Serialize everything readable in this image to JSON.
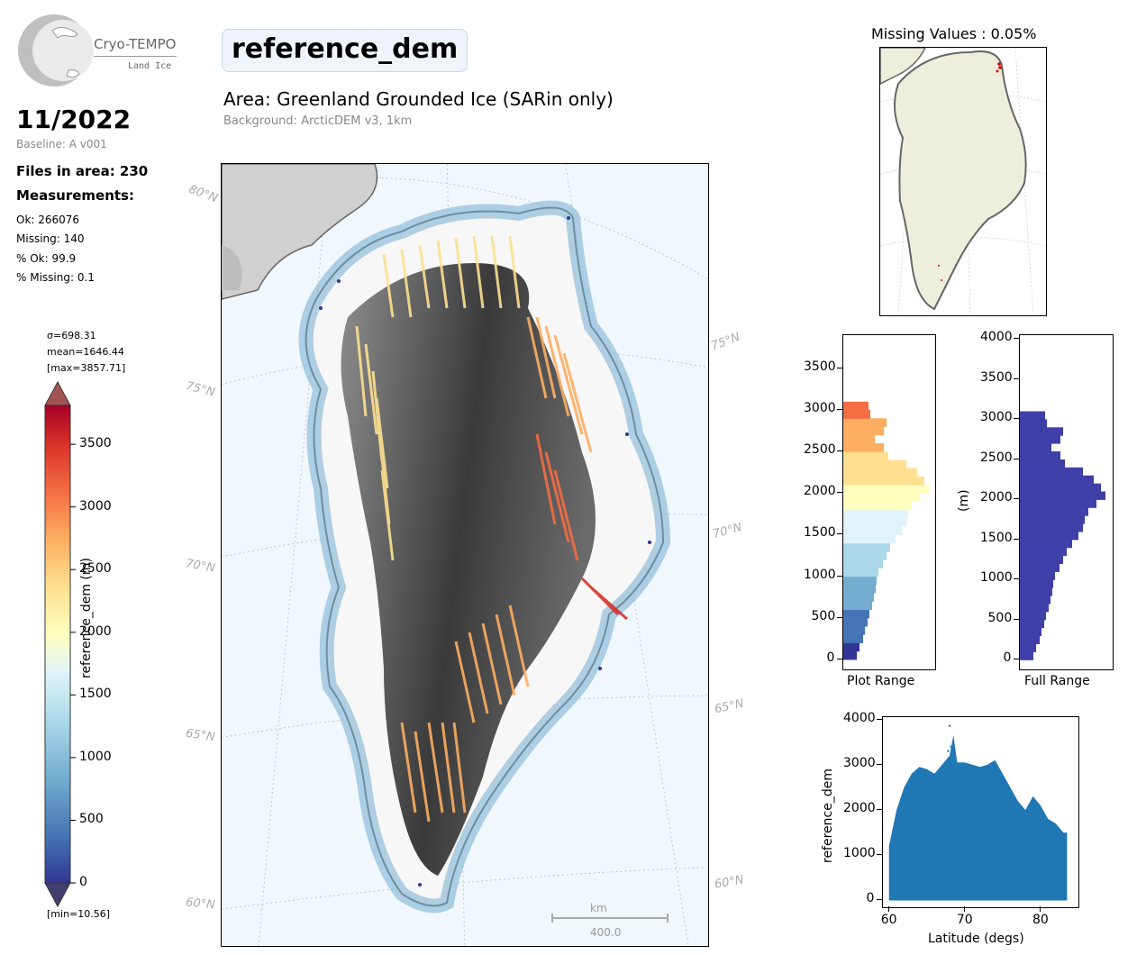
{
  "header": {
    "logo_title": "Cryo-TEMPO",
    "logo_subtitle": "Land Ice",
    "date": "11/2022",
    "baseline": "Baseline: A v001",
    "files_in_area": "Files in area: 230",
    "measurements_heading": "Measurements:",
    "stats": [
      "Ok: 266076",
      "Missing: 140",
      "% Ok: 99.9",
      "% Missing: 0.1"
    ],
    "parameter": "reference_dem",
    "area": "Area: Greenland Grounded Ice (SARin only)",
    "background": "Background: ArcticDEM v3, 1km"
  },
  "colorbar": {
    "sigma": "σ=698.31",
    "mean": "mean=1646.44",
    "max": "[max=3857.71]",
    "min": "[min=10.56]",
    "label": "reference_dem (m)",
    "ticks": [
      "0",
      "500",
      "1000",
      "1500",
      "2000",
      "2500",
      "3000",
      "3500"
    ],
    "colors": [
      "#313695",
      "#4575b4",
      "#74add1",
      "#abd9e9",
      "#e0f3f8",
      "#ffffbf",
      "#fee090",
      "#fdae61",
      "#f46d43",
      "#d73027",
      "#a50026"
    ]
  },
  "map": {
    "lat_labels": [
      "80°N",
      "75°N",
      "70°N",
      "65°N",
      "60°N",
      "75°N",
      "70°N",
      "65°N",
      "60°N"
    ],
    "scale_unit": "km",
    "scale_value": "400.0"
  },
  "inset": {
    "title": "Missing Values : 0.05%"
  },
  "histograms": {
    "left_label": "Plot Range",
    "right_label": "Full Range",
    "right_ylabel": "(m)",
    "left_ticks": [
      "0",
      "500",
      "1000",
      "1500",
      "2000",
      "2500",
      "3000",
      "3500"
    ],
    "right_ticks": [
      "0",
      "500",
      "1000",
      "1500",
      "2000",
      "2500",
      "3000",
      "3500",
      "4000"
    ],
    "bar_color": "#3f3fa8"
  },
  "chart_data": [
    {
      "type": "bar",
      "title": "",
      "xlabel": "Plot Range",
      "ylabel": "",
      "orientation": "horizontal",
      "ylim": [
        -120,
        3900
      ],
      "categories": [
        0,
        100,
        200,
        300,
        400,
        500,
        600,
        700,
        800,
        900,
        1000,
        1100,
        1200,
        1300,
        1400,
        1500,
        1600,
        1700,
        1800,
        1900,
        2000,
        2100,
        2200,
        2300,
        2400,
        2500,
        2600,
        2700,
        2800,
        2900,
        3000
      ],
      "values": [
        0.15,
        0.18,
        0.22,
        0.24,
        0.27,
        0.29,
        0.32,
        0.34,
        0.36,
        0.37,
        0.39,
        0.44,
        0.48,
        0.52,
        0.58,
        0.65,
        0.7,
        0.72,
        0.76,
        0.85,
        0.95,
        0.9,
        0.82,
        0.7,
        0.5,
        0.45,
        0.35,
        0.45,
        0.48,
        0.3,
        0.28
      ]
    },
    {
      "type": "bar",
      "title": "",
      "xlabel": "Full Range",
      "ylabel": "(m)",
      "orientation": "horizontal",
      "ylim": [
        -120,
        4050
      ],
      "categories": [
        0,
        100,
        200,
        300,
        400,
        500,
        600,
        700,
        800,
        900,
        1000,
        1100,
        1200,
        1300,
        1400,
        1500,
        1600,
        1700,
        1800,
        1900,
        2000,
        2100,
        2200,
        2300,
        2400,
        2500,
        2600,
        2700,
        2800,
        2900,
        3000
      ],
      "values": [
        0.15,
        0.18,
        0.22,
        0.24,
        0.27,
        0.29,
        0.32,
        0.34,
        0.36,
        0.37,
        0.39,
        0.44,
        0.48,
        0.52,
        0.58,
        0.65,
        0.7,
        0.72,
        0.76,
        0.85,
        0.95,
        0.9,
        0.82,
        0.7,
        0.5,
        0.45,
        0.35,
        0.45,
        0.48,
        0.3,
        0.28
      ]
    },
    {
      "type": "scatter",
      "title": "",
      "xlabel": "Latitude (degs)",
      "ylabel": "reference_dem",
      "xlim": [
        59.2,
        85
      ],
      "ylim": [
        -150,
        4050
      ],
      "xticks": [
        "60",
        "70",
        "80"
      ],
      "yticks": [
        "0",
        "1000",
        "2000",
        "3000",
        "4000"
      ],
      "color": "#1f77b4",
      "envelope_lat": [
        60,
        61,
        62,
        63,
        64,
        65,
        66,
        67,
        68,
        68.5,
        69,
        70,
        71,
        72,
        73,
        74,
        75,
        76,
        77,
        78,
        79,
        80,
        81,
        82,
        83,
        83.5
      ],
      "envelope_max": [
        1200,
        2000,
        2500,
        2800,
        2950,
        2900,
        2800,
        3000,
        3200,
        3650,
        3050,
        3050,
        3000,
        2950,
        3000,
        3100,
        2800,
        2500,
        2200,
        2000,
        2300,
        2100,
        1800,
        1700,
        1500,
        1500
      ],
      "outliers": [
        [
          68.0,
          3858
        ],
        [
          68.2,
          3400
        ],
        [
          67.8,
          3300
        ]
      ]
    }
  ]
}
